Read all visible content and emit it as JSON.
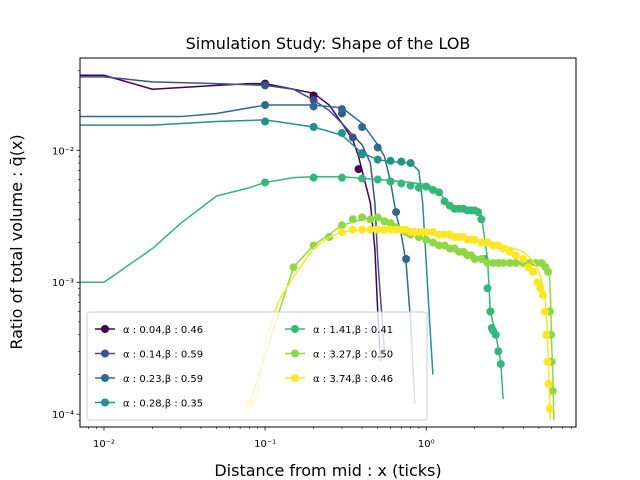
{
  "chart_data": {
    "type": "line",
    "title": "Simulation Study: Shape of the LOB",
    "xlabel": "Distance from mid : x (ticks)",
    "ylabel": "Ratio of total volume : q̄(x)",
    "xscale": "log",
    "yscale": "log",
    "xlim": [
      0.0071,
      8.5
    ],
    "ylim": [
      8e-05,
      0.05
    ],
    "xticks": [
      {
        "value": 0.01,
        "label": "10⁻²"
      },
      {
        "value": 0.1,
        "label": "10⁻¹"
      },
      {
        "value": 1,
        "label": "10⁰"
      }
    ],
    "yticks": [
      {
        "value": 0.0001,
        "label": "10⁻⁴"
      },
      {
        "value": 0.001,
        "label": "10⁻³"
      },
      {
        "value": 0.01,
        "label": "10⁻²"
      }
    ],
    "legend": {
      "position": "lower-left",
      "columns": 2
    },
    "series": [
      {
        "name": "α : 0.04,β : 0.46",
        "color": "#440154",
        "line": [
          [
            0.0071,
            0.037
          ],
          [
            0.01,
            0.037
          ],
          [
            0.02,
            0.029
          ],
          [
            0.05,
            0.031
          ],
          [
            0.08,
            0.032
          ],
          [
            0.1,
            0.032
          ],
          [
            0.15,
            0.029
          ],
          [
            0.2,
            0.027
          ],
          [
            0.25,
            0.022
          ],
          [
            0.3,
            0.016
          ],
          [
            0.35,
            0.012
          ],
          [
            0.38,
            0.009
          ],
          [
            0.4,
            0.007
          ],
          [
            0.45,
            0.004
          ],
          [
            0.48,
            0.0018
          ],
          [
            0.5,
            0.0006
          ],
          [
            0.52,
            0.00025
          ]
        ],
        "markers": [
          [
            0.1,
            0.032
          ],
          [
            0.2,
            0.026
          ],
          [
            0.38,
            0.0072
          ]
        ]
      },
      {
        "name": "α : 0.14,β : 0.59",
        "color": "#3b528b",
        "line": [
          [
            0.0071,
            0.036
          ],
          [
            0.01,
            0.036
          ],
          [
            0.02,
            0.033
          ],
          [
            0.05,
            0.032
          ],
          [
            0.1,
            0.031
          ],
          [
            0.15,
            0.029
          ],
          [
            0.2,
            0.024
          ],
          [
            0.25,
            0.02
          ],
          [
            0.3,
            0.016
          ],
          [
            0.35,
            0.013
          ],
          [
            0.4,
            0.011
          ],
          [
            0.45,
            0.008
          ],
          [
            0.48,
            0.004
          ],
          [
            0.5,
            0.0015
          ],
          [
            0.55,
            0.0003
          ]
        ],
        "markers": [
          [
            0.1,
            0.031
          ],
          [
            0.2,
            0.024
          ],
          [
            0.3,
            0.019
          ],
          [
            0.35,
            0.0125
          ],
          [
            0.4,
            0.0095
          ]
        ]
      },
      {
        "name": "α : 0.23,β : 0.59",
        "color": "#31688e",
        "line": [
          [
            0.0071,
            0.018
          ],
          [
            0.01,
            0.018
          ],
          [
            0.03,
            0.018
          ],
          [
            0.05,
            0.019
          ],
          [
            0.1,
            0.022
          ],
          [
            0.2,
            0.022
          ],
          [
            0.3,
            0.021
          ],
          [
            0.4,
            0.016
          ],
          [
            0.5,
            0.011
          ],
          [
            0.55,
            0.009
          ],
          [
            0.6,
            0.0058
          ],
          [
            0.65,
            0.0033
          ],
          [
            0.7,
            0.0023
          ],
          [
            0.75,
            0.0014
          ],
          [
            0.8,
            0.0005
          ],
          [
            0.85,
            0.00012
          ]
        ],
        "markers": [
          [
            0.1,
            0.022
          ],
          [
            0.2,
            0.0215
          ],
          [
            0.3,
            0.0205
          ],
          [
            0.4,
            0.015
          ],
          [
            0.5,
            0.0105
          ],
          [
            0.6,
            0.0058
          ],
          [
            0.65,
            0.0034
          ],
          [
            0.75,
            0.0015
          ]
        ]
      },
      {
        "name": "α : 0.28,β : 0.35",
        "color": "#21918c",
        "line": [
          [
            0.0071,
            0.0155
          ],
          [
            0.01,
            0.0155
          ],
          [
            0.02,
            0.0155
          ],
          [
            0.05,
            0.0165
          ],
          [
            0.1,
            0.017
          ],
          [
            0.2,
            0.015
          ],
          [
            0.3,
            0.013
          ],
          [
            0.4,
            0.0095
          ],
          [
            0.5,
            0.0085
          ],
          [
            0.6,
            0.0082
          ],
          [
            0.7,
            0.0081
          ],
          [
            0.8,
            0.008
          ],
          [
            0.9,
            0.007
          ],
          [
            0.95,
            0.004
          ],
          [
            1.0,
            0.0014
          ],
          [
            1.05,
            0.0005
          ],
          [
            1.1,
            0.0002
          ]
        ],
        "markers": [
          [
            0.1,
            0.0165
          ],
          [
            0.2,
            0.015
          ],
          [
            0.3,
            0.0135
          ],
          [
            0.4,
            0.0093
          ],
          [
            0.5,
            0.0085
          ],
          [
            0.6,
            0.0083
          ],
          [
            0.7,
            0.0082
          ],
          [
            0.8,
            0.008
          ]
        ]
      },
      {
        "name": "α : 1.41,β : 0.41",
        "color": "#35b779",
        "line": [
          [
            0.0071,
            0.001
          ],
          [
            0.01,
            0.001
          ],
          [
            0.02,
            0.0018
          ],
          [
            0.03,
            0.0028
          ],
          [
            0.05,
            0.0045
          ],
          [
            0.08,
            0.0052
          ],
          [
            0.1,
            0.0057
          ],
          [
            0.15,
            0.0062
          ],
          [
            0.2,
            0.0063
          ],
          [
            0.3,
            0.0063
          ],
          [
            0.5,
            0.006
          ],
          [
            0.6,
            0.0059
          ],
          [
            0.8,
            0.0057
          ],
          [
            1.0,
            0.0055
          ],
          [
            1.2,
            0.005
          ],
          [
            1.3,
            0.0042
          ],
          [
            1.4,
            0.0037
          ],
          [
            1.6,
            0.0036
          ],
          [
            1.8,
            0.0036
          ],
          [
            2.0,
            0.0035
          ],
          [
            2.1,
            0.0034
          ],
          [
            2.2,
            0.0032
          ],
          [
            2.4,
            0.0015
          ],
          [
            2.5,
            0.0006
          ],
          [
            2.7,
            0.0004
          ],
          [
            2.9,
            0.00025
          ],
          [
            3.0,
            0.00013
          ]
        ],
        "markers": [
          [
            0.1,
            0.0057
          ],
          [
            0.2,
            0.0062
          ],
          [
            0.3,
            0.0062
          ],
          [
            0.4,
            0.0061
          ],
          [
            0.5,
            0.006
          ],
          [
            0.6,
            0.0058
          ],
          [
            0.7,
            0.0056
          ],
          [
            0.8,
            0.0054
          ],
          [
            0.9,
            0.0052
          ],
          [
            1.0,
            0.0053
          ],
          [
            1.1,
            0.005
          ],
          [
            1.2,
            0.0048
          ],
          [
            1.3,
            0.0041
          ],
          [
            1.4,
            0.0038
          ],
          [
            1.5,
            0.0036
          ],
          [
            1.6,
            0.0036
          ],
          [
            1.7,
            0.0036
          ],
          [
            1.8,
            0.0035
          ],
          [
            1.9,
            0.0035
          ],
          [
            2.0,
            0.0035
          ],
          [
            2.1,
            0.0034
          ],
          [
            2.2,
            0.003
          ],
          [
            2.3,
            0.0015
          ],
          [
            2.4,
            0.0009
          ],
          [
            2.5,
            0.0006
          ],
          [
            2.55,
            0.00045
          ],
          [
            2.6,
            0.00043
          ],
          [
            2.7,
            0.0004
          ],
          [
            2.8,
            0.0003
          ],
          [
            2.9,
            0.00024
          ]
        ]
      },
      {
        "name": "α : 3.27,β : 0.50",
        "color": "#90d743",
        "line": [
          [
            0.08,
            0.00012
          ],
          [
            0.1,
            0.00028
          ],
          [
            0.15,
            0.0013
          ],
          [
            0.2,
            0.0019
          ],
          [
            0.3,
            0.0027
          ],
          [
            0.4,
            0.003
          ],
          [
            0.5,
            0.0031
          ],
          [
            0.6,
            0.0029
          ],
          [
            0.7,
            0.0026
          ],
          [
            0.8,
            0.0024
          ],
          [
            0.9,
            0.0022
          ],
          [
            1.0,
            0.0021
          ],
          [
            1.2,
            0.0019
          ],
          [
            1.5,
            0.0018
          ],
          [
            1.8,
            0.0017
          ],
          [
            2.0,
            0.0016
          ],
          [
            2.2,
            0.0015
          ],
          [
            2.5,
            0.0014
          ],
          [
            3.0,
            0.0014
          ],
          [
            4.0,
            0.0014
          ],
          [
            5.0,
            0.0014
          ],
          [
            5.5,
            0.0014
          ],
          [
            5.8,
            0.0012
          ],
          [
            5.9,
            0.0008
          ],
          [
            6.0,
            0.00035
          ],
          [
            6.1,
            0.0002
          ],
          [
            6.2,
            9e-05
          ]
        ],
        "markers": [
          [
            0.15,
            0.0013
          ],
          [
            0.2,
            0.0019
          ],
          [
            0.25,
            0.0022
          ],
          [
            0.3,
            0.0027
          ],
          [
            0.35,
            0.003
          ],
          [
            0.4,
            0.0031
          ],
          [
            0.45,
            0.003
          ],
          [
            0.5,
            0.0031
          ],
          [
            0.55,
            0.0029
          ],
          [
            0.6,
            0.0028
          ],
          [
            0.65,
            0.0026
          ],
          [
            0.7,
            0.0025
          ],
          [
            0.75,
            0.0024
          ],
          [
            0.8,
            0.0023
          ],
          [
            0.9,
            0.0022
          ],
          [
            1.0,
            0.0021
          ],
          [
            1.1,
            0.002
          ],
          [
            1.2,
            0.0019
          ],
          [
            1.3,
            0.0019
          ],
          [
            1.4,
            0.0018
          ],
          [
            1.5,
            0.0018
          ],
          [
            1.6,
            0.0017
          ],
          [
            1.7,
            0.0017
          ],
          [
            1.8,
            0.0016
          ],
          [
            1.9,
            0.0016
          ],
          [
            2.0,
            0.0015
          ],
          [
            2.2,
            0.0015
          ],
          [
            2.4,
            0.0014
          ],
          [
            2.6,
            0.0014
          ],
          [
            2.8,
            0.0014
          ],
          [
            3.0,
            0.0014
          ],
          [
            3.3,
            0.0014
          ],
          [
            3.6,
            0.0014
          ],
          [
            4.0,
            0.0014
          ],
          [
            4.4,
            0.0014
          ],
          [
            4.8,
            0.0014
          ],
          [
            5.2,
            0.0014
          ],
          [
            5.5,
            0.0013
          ],
          [
            5.7,
            0.0012
          ],
          [
            5.85,
            0.0006
          ],
          [
            5.95,
            0.0004
          ],
          [
            6.0,
            0.00025
          ],
          [
            6.1,
            0.00015
          ]
        ]
      },
      {
        "name": "α : 3.74,β : 0.46",
        "color": "#fde725",
        "line": [
          [
            0.08,
            0.00011
          ],
          [
            0.09,
            0.00015
          ],
          [
            0.1,
            0.00035
          ],
          [
            0.12,
            0.0007
          ],
          [
            0.15,
            0.0011
          ],
          [
            0.2,
            0.0018
          ],
          [
            0.25,
            0.0022
          ],
          [
            0.3,
            0.0024
          ],
          [
            0.4,
            0.0025
          ],
          [
            0.6,
            0.0025
          ],
          [
            1.0,
            0.0024
          ],
          [
            1.5,
            0.0023
          ],
          [
            2.0,
            0.0021
          ],
          [
            2.5,
            0.002
          ],
          [
            3.0,
            0.0019
          ],
          [
            3.5,
            0.0018
          ],
          [
            4.0,
            0.0017
          ],
          [
            4.5,
            0.0015
          ],
          [
            5.0,
            0.0012
          ],
          [
            5.3,
            0.00095
          ],
          [
            5.5,
            0.0007
          ],
          [
            5.6,
            0.0005
          ],
          [
            5.7,
            0.0003
          ],
          [
            5.8,
            0.00015
          ],
          [
            5.9,
            9e-05
          ]
        ],
        "markers": [
          [
            0.08,
            0.00012
          ],
          [
            0.3,
            0.0024
          ],
          [
            0.35,
            0.0025
          ],
          [
            0.4,
            0.0025
          ],
          [
            0.45,
            0.0025
          ],
          [
            0.5,
            0.0025
          ],
          [
            0.55,
            0.0025
          ],
          [
            0.6,
            0.0025
          ],
          [
            0.65,
            0.0025
          ],
          [
            0.7,
            0.0025
          ],
          [
            0.75,
            0.0025
          ],
          [
            0.8,
            0.0024
          ],
          [
            0.85,
            0.0024
          ],
          [
            0.9,
            0.0024
          ],
          [
            0.95,
            0.0024
          ],
          [
            1.0,
            0.0024
          ],
          [
            1.1,
            0.0024
          ],
          [
            1.2,
            0.0023
          ],
          [
            1.3,
            0.0023
          ],
          [
            1.4,
            0.0023
          ],
          [
            1.5,
            0.0022
          ],
          [
            1.6,
            0.0022
          ],
          [
            1.7,
            0.0022
          ],
          [
            1.8,
            0.0021
          ],
          [
            1.9,
            0.0021
          ],
          [
            2.0,
            0.0021
          ],
          [
            2.2,
            0.002
          ],
          [
            2.4,
            0.002
          ],
          [
            2.6,
            0.0019
          ],
          [
            2.8,
            0.0019
          ],
          [
            3.0,
            0.0018
          ],
          [
            3.3,
            0.0017
          ],
          [
            3.6,
            0.0016
          ],
          [
            4.0,
            0.0015
          ],
          [
            4.3,
            0.0013
          ],
          [
            4.6,
            0.0012
          ],
          [
            4.9,
            0.001
          ],
          [
            5.1,
            0.0009
          ],
          [
            5.3,
            0.0008
          ],
          [
            5.45,
            0.0006
          ],
          [
            5.55,
            0.0004
          ],
          [
            5.65,
            0.00025
          ],
          [
            5.75,
            0.00017
          ],
          [
            5.85,
            0.00011
          ]
        ]
      }
    ]
  }
}
